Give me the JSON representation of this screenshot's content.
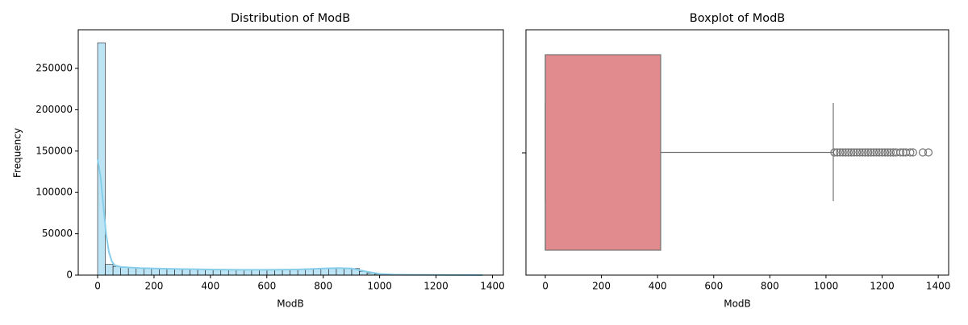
{
  "chart_data": [
    {
      "type": "histogram",
      "title": "Distribution of ModB",
      "xlabel": "ModB",
      "ylabel": "Frequency",
      "color": "#87ceeb",
      "bins": [
        0,
        27.3,
        54.6,
        81.9,
        109.2,
        136.5,
        163.8,
        191.1,
        218.4,
        245.7,
        273,
        300.3,
        327.6,
        354.9,
        382.2,
        409.5,
        436.8,
        464.1,
        491.4,
        518.7,
        546,
        573.3,
        600.6,
        627.9,
        655.2,
        682.5,
        709.8,
        737.1,
        764.4,
        791.7,
        819,
        846.3,
        873.6,
        900.9,
        928.2,
        955.5,
        982.8,
        1010.1,
        1037.4,
        1064.7,
        1092,
        1119.3,
        1146.6,
        1173.9,
        1201.2,
        1228.5,
        1255.8,
        1283.1,
        1310.4,
        1337.7,
        1365
      ],
      "values": [
        281000,
        13000,
        10500,
        9500,
        9000,
        8800,
        8500,
        8300,
        8000,
        7800,
        7600,
        7400,
        7300,
        7200,
        7100,
        7000,
        6900,
        6800,
        6800,
        6700,
        6700,
        6600,
        6600,
        6600,
        6600,
        6700,
        6800,
        7000,
        7300,
        7700,
        8000,
        8300,
        8500,
        8000,
        4500,
        2500,
        1200,
        800,
        600,
        500,
        400,
        350,
        300,
        250,
        200,
        150,
        100,
        80,
        50,
        30
      ],
      "kde": {
        "x": [
          0,
          10,
          20,
          30,
          40,
          50,
          60,
          80,
          100,
          150,
          200,
          300,
          400,
          500,
          600,
          700,
          750,
          800,
          850,
          900,
          950,
          1000,
          1050,
          1100,
          1200,
          1300,
          1365
        ],
        "values": [
          140000,
          120000,
          85000,
          50000,
          28000,
          17000,
          12000,
          10000,
          9500,
          8500,
          8000,
          7300,
          6800,
          6500,
          6500,
          6800,
          7300,
          8000,
          8500,
          8000,
          4500,
          1500,
          600,
          400,
          200,
          80,
          20
        ]
      },
      "xlim": [
        -68.7,
        1438.7
      ],
      "ylim": [
        0,
        296700
      ],
      "xticks": [
        0,
        200,
        400,
        600,
        800,
        1000,
        1200,
        1400
      ],
      "yticks": [
        0,
        50000,
        100000,
        150000,
        200000,
        250000
      ]
    },
    {
      "type": "box",
      "title": "Boxplot of ModB",
      "xlabel": "ModB",
      "color": "#e28b8e",
      "q1": 0,
      "median": 0,
      "q3": 411,
      "whisker_low": 0,
      "whisker_high": 1026,
      "outliers": [
        1030,
        1040,
        1050,
        1060,
        1070,
        1080,
        1090,
        1100,
        1110,
        1120,
        1130,
        1140,
        1150,
        1160,
        1170,
        1180,
        1190,
        1200,
        1210,
        1220,
        1230,
        1240,
        1250,
        1265,
        1275,
        1285,
        1300,
        1310,
        1345,
        1365
      ],
      "xlim": [
        -69,
        1437
      ],
      "xticks": [
        0,
        200,
        400,
        600,
        800,
        1000,
        1200,
        1400
      ]
    }
  ]
}
